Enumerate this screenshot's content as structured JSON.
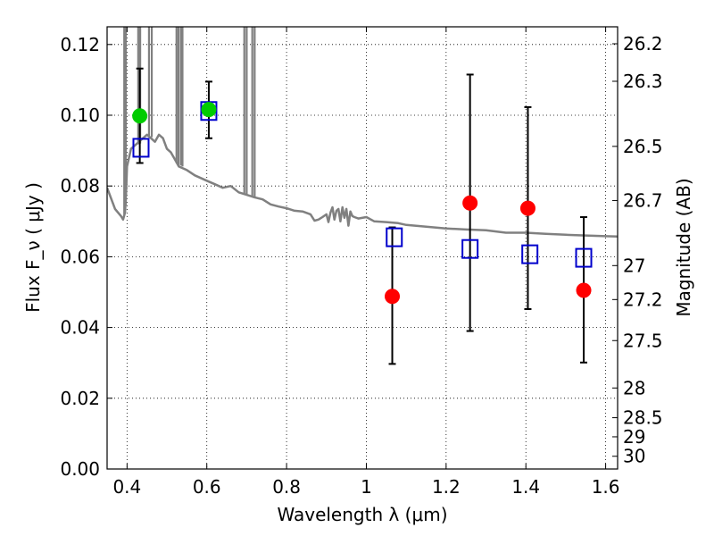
{
  "chart_data": {
    "type": "scatter",
    "xlabel": "Wavelength  λ (μm)",
    "ylabel_left": "Flux  F_ν  ( μJy )",
    "ylabel_right": "Magnitude (AB)",
    "xlim": [
      0.35,
      1.63
    ],
    "ylim": [
      0.0,
      0.125
    ],
    "grid": true,
    "x_ticks": [
      0.4,
      0.6,
      0.8,
      1.0,
      1.2,
      1.4,
      1.6
    ],
    "x_tick_labels": [
      "0.4",
      "0.6",
      "0.8",
      "1",
      "1.2",
      "1.4",
      "1.6"
    ],
    "y_ticks": [
      0.0,
      0.02,
      0.04,
      0.06,
      0.08,
      0.1,
      0.12
    ],
    "y_tick_labels": [
      "0.00",
      "0.02",
      "0.04",
      "0.06",
      "0.08",
      "0.10",
      "0.12"
    ],
    "right_ticks": [
      {
        "label": "26.2",
        "flux": 0.1202
      },
      {
        "label": "26.3",
        "flux": 0.1096
      },
      {
        "label": "26.5",
        "flux": 0.0912
      },
      {
        "label": "26.7",
        "flux": 0.0759
      },
      {
        "label": "27",
        "flux": 0.0575
      },
      {
        "label": "27.2",
        "flux": 0.0479
      },
      {
        "label": "27.5",
        "flux": 0.0363
      },
      {
        "label": "28",
        "flux": 0.0229
      },
      {
        "label": "28.5",
        "flux": 0.0145
      },
      {
        "label": "29",
        "flux": 0.0091
      },
      {
        "label": "30",
        "flux": 0.0036
      }
    ],
    "series": [
      {
        "name": "",
        "kind": "errorbar_points",
        "color": "#00cc00",
        "x": [
          0.432,
          0.605
        ],
        "y": [
          0.0998,
          0.1016
        ],
        "yerr_low": [
          0.0865,
          0.0935
        ],
        "yerr_high": [
          0.1132,
          0.1095
        ]
      },
      {
        "name": "",
        "kind": "errorbar_points",
        "color": "#ff0000",
        "x": [
          1.065,
          1.26,
          1.405,
          1.545
        ],
        "y": [
          0.0488,
          0.0752,
          0.0737,
          0.0505
        ],
        "yerr_low": [
          0.0297,
          0.039,
          0.0452,
          0.0301
        ],
        "yerr_high": [
          0.0683,
          0.1115,
          0.1023,
          0.0712
        ]
      },
      {
        "name": "",
        "kind": "model_squares",
        "color": "#0000cc",
        "x": [
          0.435,
          0.605,
          1.07,
          1.26,
          1.41,
          1.545
        ],
        "y": [
          0.0908,
          0.1012,
          0.0655,
          0.0622,
          0.0607,
          0.0597
        ]
      },
      {
        "name": "",
        "kind": "spectrum_line",
        "color": "#808080",
        "x": [
          0.35,
          0.37,
          0.385,
          0.39,
          0.395,
          0.398,
          0.4,
          0.41,
          0.42,
          0.43,
          0.44,
          0.45,
          0.46,
          0.47,
          0.48,
          0.49,
          0.5,
          0.51,
          0.52,
          0.53,
          0.55,
          0.57,
          0.6,
          0.62,
          0.64,
          0.66,
          0.68,
          0.7,
          0.72,
          0.74,
          0.76,
          0.78,
          0.8,
          0.82,
          0.84,
          0.86,
          0.87,
          0.88,
          0.89,
          0.9,
          0.905,
          0.91,
          0.915,
          0.92,
          0.925,
          0.93,
          0.935,
          0.94,
          0.945,
          0.95,
          0.955,
          0.96,
          0.965,
          0.97,
          0.98,
          1.0,
          1.02,
          1.05,
          1.08,
          1.1,
          1.15,
          1.2,
          1.25,
          1.3,
          1.35,
          1.4,
          1.45,
          1.5,
          1.55,
          1.6,
          1.63
        ],
        "y": [
          0.0795,
          0.0735,
          0.0715,
          0.0705,
          0.0725,
          0.0795,
          0.0855,
          0.0905,
          0.0915,
          0.0925,
          0.0935,
          0.0945,
          0.0935,
          0.0925,
          0.0945,
          0.0935,
          0.0905,
          0.0895,
          0.0875,
          0.0855,
          0.0845,
          0.083,
          0.0815,
          0.0805,
          0.0795,
          0.08,
          0.0782,
          0.0775,
          0.0768,
          0.0762,
          0.0748,
          0.0742,
          0.0737,
          0.073,
          0.0728,
          0.072,
          0.0702,
          0.0705,
          0.0712,
          0.072,
          0.0698,
          0.0725,
          0.074,
          0.0705,
          0.073,
          0.0735,
          0.07,
          0.074,
          0.071,
          0.0735,
          0.0688,
          0.0728,
          0.0715,
          0.0712,
          0.0708,
          0.0712,
          0.07,
          0.0698,
          0.0695,
          0.069,
          0.0685,
          0.068,
          0.0677,
          0.0675,
          0.0668,
          0.0668,
          0.0665,
          0.0662,
          0.066,
          0.0658,
          0.0657
        ]
      }
    ],
    "absorption_lines": [
      {
        "x": 0.393,
        "top": 0.125,
        "base": 0.072
      },
      {
        "x": 0.397,
        "top": 0.125,
        "base": 0.0745
      },
      {
        "x": 0.428,
        "top": 0.125,
        "base": 0.0918
      },
      {
        "x": 0.433,
        "top": 0.125,
        "base": 0.092
      },
      {
        "x": 0.455,
        "top": 0.125,
        "base": 0.094
      },
      {
        "x": 0.462,
        "top": 0.125,
        "base": 0.0938
      },
      {
        "x": 0.524,
        "top": 0.125,
        "base": 0.0865
      },
      {
        "x": 0.529,
        "top": 0.125,
        "base": 0.086
      },
      {
        "x": 0.535,
        "top": 0.125,
        "base": 0.0858
      },
      {
        "x": 0.539,
        "top": 0.125,
        "base": 0.0855
      },
      {
        "x": 0.694,
        "top": 0.125,
        "base": 0.0778
      },
      {
        "x": 0.7,
        "top": 0.125,
        "base": 0.0776
      },
      {
        "x": 0.714,
        "top": 0.125,
        "base": 0.0771
      },
      {
        "x": 0.72,
        "top": 0.125,
        "base": 0.077
      }
    ]
  }
}
